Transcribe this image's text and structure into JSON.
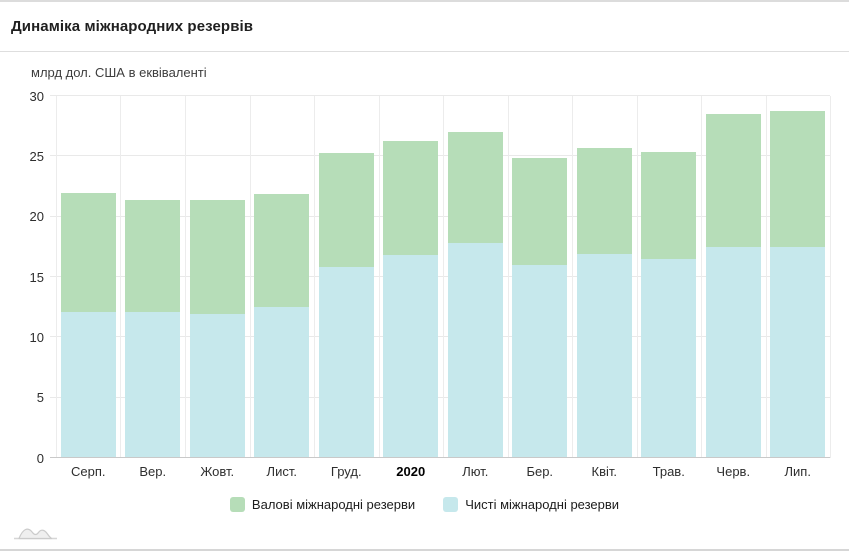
{
  "header": {
    "title": "Динаміка міжнародних резервів"
  },
  "chart_data": {
    "type": "bar",
    "stacked": true,
    "title": "Динаміка міжнародних резервів",
    "ylabel": "млрд дол. США в еквіваленті",
    "xlabel": "",
    "ylim": [
      0,
      30
    ],
    "ytick_step": 5,
    "yticks": [
      0,
      5,
      10,
      15,
      20,
      25,
      30
    ],
    "grid": "horizontal and vertical, light gray",
    "legend_position": "bottom-center",
    "categories": [
      "Серп.",
      "Вер.",
      "Жовт.",
      "Лист.",
      "Груд.",
      "2020",
      "Лют.",
      "Бер.",
      "Квіт.",
      "Трав.",
      "Черв.",
      "Лип."
    ],
    "bold_category": "2020",
    "series": [
      {
        "name": "Валові міжнародні резерви",
        "role": "gross-total",
        "note": "green segment drawn from net value up to this total",
        "color": "#b6ddb8",
        "values": [
          22.0,
          21.4,
          21.4,
          21.9,
          25.3,
          26.3,
          27.0,
          24.9,
          25.7,
          25.4,
          28.5,
          28.8
        ]
      },
      {
        "name": "Чисті міжнародні резерви",
        "role": "net-bottom",
        "note": "blue segment drawn from 0 up to this value",
        "color": "#c6e8ec",
        "values": [
          12.1,
          12.1,
          11.9,
          12.5,
          15.8,
          16.8,
          17.8,
          16.0,
          16.9,
          16.5,
          17.5,
          17.5
        ]
      }
    ]
  },
  "legend": {
    "items": [
      {
        "label": "Валові міжнародні резерви",
        "color": "#b6ddb8"
      },
      {
        "label": "Чисті міжнародні резерви",
        "color": "#c6e8ec"
      }
    ]
  },
  "icons": {
    "logo": "amcharts-logo"
  },
  "colors": {
    "gross_green": "#b6ddb8",
    "net_blue": "#c6e8ec",
    "gridline": "#e9e9e9",
    "baseline": "#c9c9c9",
    "title_text": "#1f1f1f",
    "axis_text": "#2e2e2e"
  }
}
